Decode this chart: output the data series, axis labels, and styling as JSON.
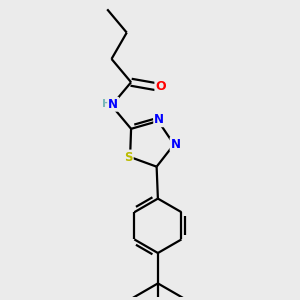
{
  "background_color": "#ebebeb",
  "atom_colors": {
    "O": "#ff0000",
    "N": "#0000ff",
    "S": "#bbbb00",
    "H": "#7ab8b8",
    "C": "#000000"
  },
  "bond_color": "#000000",
  "bond_width": 1.6,
  "figsize": [
    3.0,
    3.0
  ],
  "dpi": 100
}
